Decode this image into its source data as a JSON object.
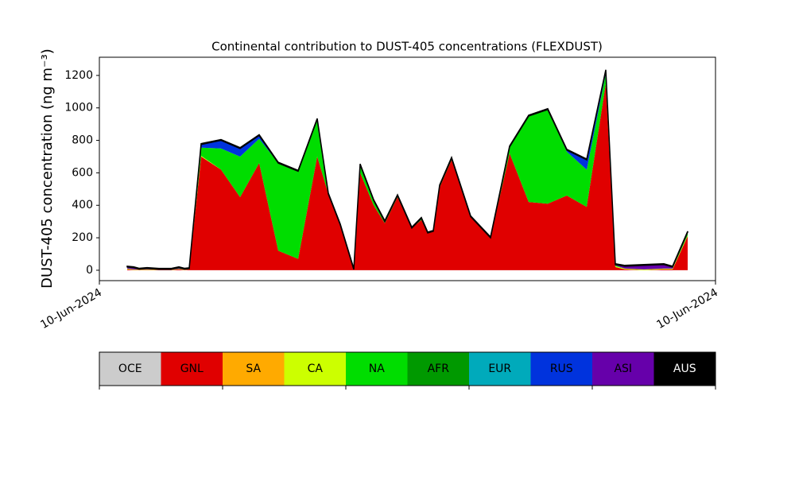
{
  "chart_data": {
    "type": "stackedarea",
    "title": "Continental contribution to DUST-405 concentrations (FLEXDUST)",
    "y_label": "DUST-405 concentration (ng m⁻³)",
    "x": [
      35,
      43,
      50,
      60,
      75,
      90,
      100,
      107,
      113,
      128,
      153,
      177,
      201,
      225,
      250,
      274,
      288,
      303,
      320,
      328,
      345,
      359,
      375,
      393,
      405,
      413,
      420,
      428,
      443,
      467,
      492,
      516,
      540,
      564,
      588,
      613,
      637,
      649,
      661,
      685,
      710,
      721,
      740
    ],
    "xlim": [
      0,
      775
    ],
    "xticks": [
      {
        "value": 0,
        "label": "10-Jun-2024"
      },
      {
        "value": 775,
        "label": "10-Jun-2024"
      }
    ],
    "ylim": [
      -64,
      1312
    ],
    "yticks": [
      0,
      200,
      400,
      600,
      800,
      1000,
      1200
    ],
    "series": [
      {
        "name": "OCE",
        "color": "#cccccc",
        "values": [
          0,
          0,
          0,
          0,
          0,
          0,
          0,
          0,
          0,
          0,
          0,
          0,
          0,
          0,
          0,
          0,
          0,
          0,
          0,
          0,
          0,
          0,
          0,
          0,
          0,
          0,
          0,
          0,
          0,
          0,
          0,
          0,
          0,
          0,
          0,
          0,
          0,
          0,
          0,
          0,
          0,
          0,
          0
        ]
      },
      {
        "name": "GNL",
        "color": "#e00000",
        "values": [
          5,
          3,
          3,
          3,
          2,
          2,
          5,
          3,
          5,
          700,
          620,
          450,
          660,
          120,
          70,
          700,
          470,
          280,
          5,
          600,
          400,
          290,
          450,
          260,
          310,
          230,
          240,
          510,
          680,
          330,
          200,
          720,
          420,
          410,
          460,
          390,
          1150,
          20,
          5,
          0,
          5,
          5,
          210
        ]
      },
      {
        "name": "SA",
        "color": "#ffaa00",
        "values": [
          0,
          0,
          0,
          0,
          0,
          0,
          0,
          0,
          0,
          0,
          0,
          0,
          0,
          0,
          0,
          0,
          0,
          0,
          0,
          0,
          0,
          0,
          0,
          0,
          0,
          0,
          0,
          0,
          0,
          0,
          0,
          0,
          0,
          0,
          0,
          0,
          0,
          0,
          0,
          0,
          0,
          0,
          0
        ]
      },
      {
        "name": "CA",
        "color": "#ccff00",
        "values": [
          5,
          3,
          2,
          3,
          2,
          2,
          3,
          2,
          2,
          5,
          0,
          0,
          0,
          0,
          0,
          0,
          0,
          0,
          0,
          0,
          0,
          0,
          0,
          0,
          0,
          0,
          0,
          0,
          0,
          0,
          0,
          0,
          0,
          0,
          0,
          0,
          0,
          5,
          5,
          5,
          5,
          5,
          5
        ]
      },
      {
        "name": "NA",
        "color": "#00dd00",
        "values": [
          0,
          0,
          0,
          0,
          0,
          0,
          0,
          0,
          0,
          50,
          130,
          250,
          150,
          540,
          540,
          230,
          0,
          0,
          0,
          50,
          30,
          10,
          10,
          0,
          10,
          0,
          0,
          10,
          10,
          0,
          0,
          40,
          530,
          580,
          270,
          230,
          60,
          5,
          0,
          0,
          0,
          0,
          20
        ]
      },
      {
        "name": "AFR",
        "color": "#009900",
        "values": [
          0,
          0,
          0,
          0,
          0,
          0,
          0,
          0,
          0,
          0,
          0,
          0,
          0,
          0,
          0,
          0,
          0,
          0,
          0,
          0,
          0,
          0,
          0,
          0,
          0,
          0,
          0,
          0,
          0,
          0,
          0,
          0,
          0,
          0,
          0,
          0,
          0,
          0,
          0,
          0,
          0,
          0,
          0
        ]
      },
      {
        "name": "EUR",
        "color": "#00aabb",
        "values": [
          0,
          0,
          0,
          0,
          0,
          0,
          0,
          0,
          0,
          0,
          0,
          0,
          0,
          0,
          0,
          0,
          0,
          0,
          0,
          0,
          0,
          0,
          0,
          0,
          0,
          0,
          0,
          0,
          0,
          0,
          0,
          0,
          0,
          0,
          0,
          0,
          0,
          0,
          0,
          0,
          0,
          0,
          0
        ]
      },
      {
        "name": "RUS",
        "color": "#0033dd",
        "values": [
          0,
          0,
          0,
          0,
          0,
          0,
          0,
          0,
          0,
          20,
          50,
          50,
          20,
          0,
          0,
          0,
          0,
          0,
          0,
          0,
          0,
          0,
          0,
          0,
          0,
          0,
          0,
          0,
          0,
          0,
          0,
          0,
          0,
          0,
          10,
          60,
          20,
          0,
          0,
          0,
          0,
          0,
          0
        ]
      },
      {
        "name": "ASI",
        "color": "#6600aa",
        "values": [
          10,
          10,
          2,
          5,
          2,
          2,
          8,
          2,
          3,
          0,
          0,
          0,
          0,
          0,
          0,
          0,
          0,
          0,
          0,
          0,
          0,
          0,
          0,
          0,
          0,
          0,
          0,
          0,
          0,
          0,
          0,
          0,
          0,
          0,
          0,
          0,
          0,
          5,
          15,
          25,
          25,
          10,
          0
        ]
      },
      {
        "name": "AUS",
        "color": "#000000",
        "values": [
          5,
          5,
          5,
          5,
          5,
          5,
          5,
          5,
          5,
          5,
          5,
          5,
          5,
          5,
          5,
          5,
          5,
          5,
          5,
          5,
          5,
          5,
          5,
          5,
          5,
          5,
          5,
          5,
          5,
          5,
          5,
          5,
          5,
          5,
          5,
          5,
          5,
          5,
          5,
          5,
          5,
          5,
          5
        ]
      }
    ]
  }
}
